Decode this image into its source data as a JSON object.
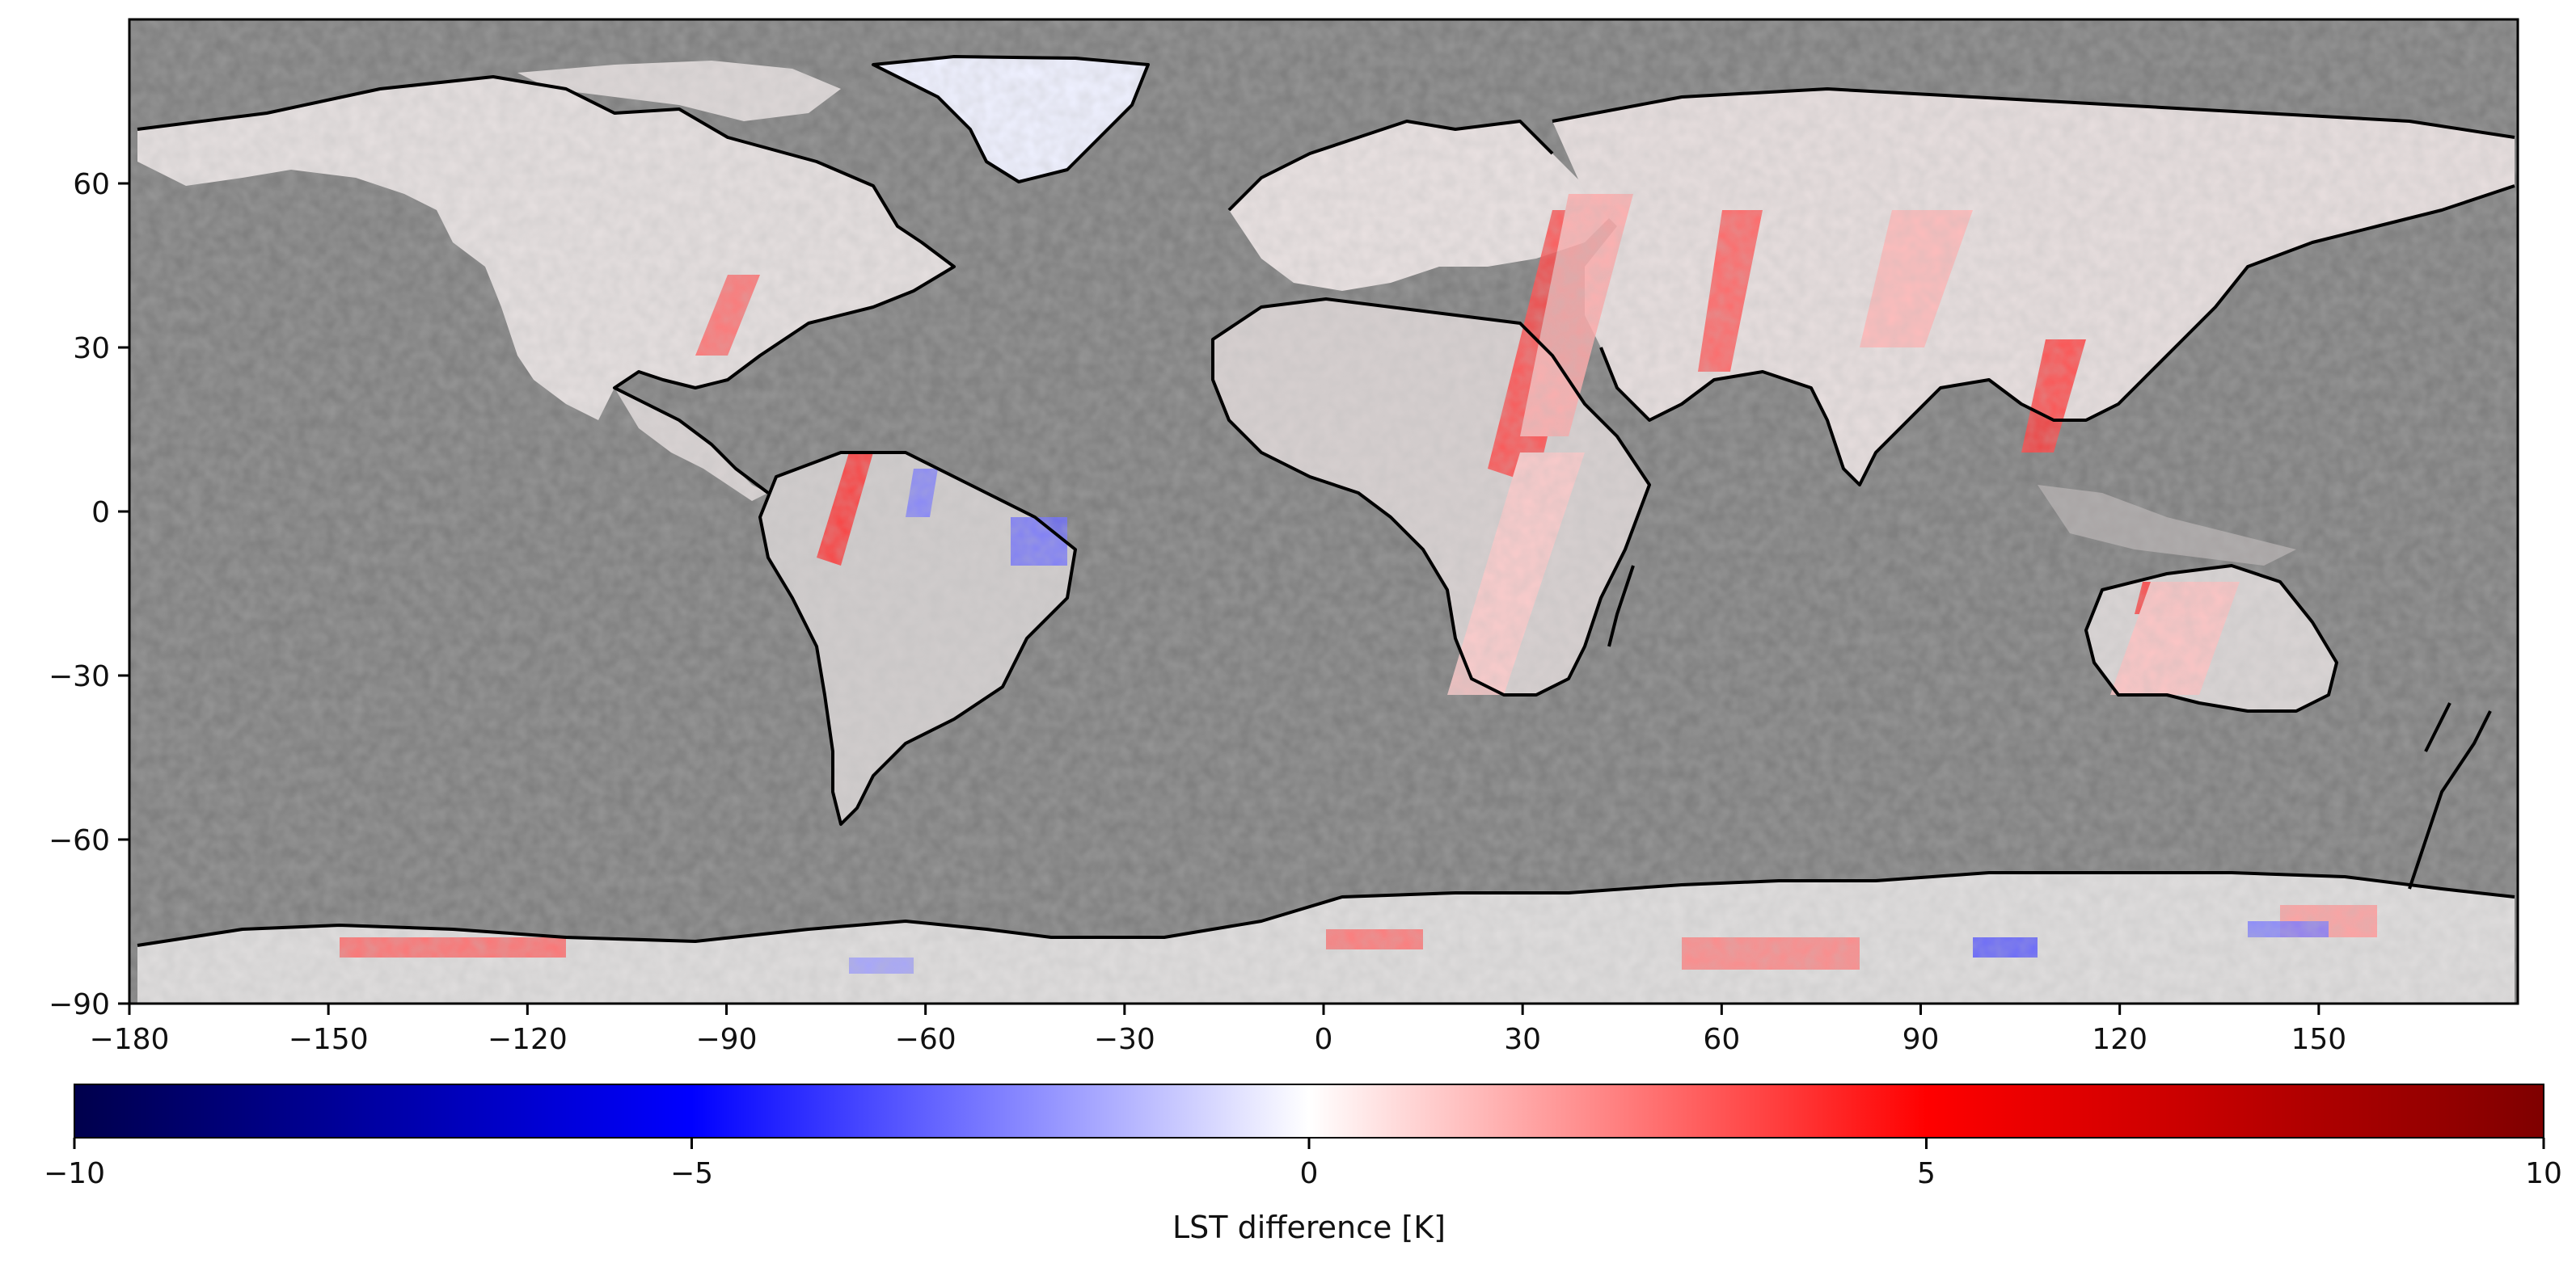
{
  "map": {
    "projection": "plate-carree",
    "background_color": "#808080",
    "coastline_color": "#000000",
    "extent": {
      "lon": [
        -180,
        180
      ],
      "lat": [
        -90,
        90
      ]
    },
    "x_ticks": [
      "−180",
      "−150",
      "−120",
      "−90",
      "−60",
      "−30",
      "0",
      "30",
      "60",
      "90",
      "120",
      "150"
    ],
    "x_tick_values": [
      -180,
      -150,
      -120,
      -90,
      -60,
      -30,
      0,
      30,
      60,
      90,
      120,
      150
    ],
    "y_ticks": [
      "60",
      "30",
      "0",
      "−30",
      "−60",
      "−90"
    ],
    "y_tick_values": [
      60,
      30,
      0,
      -30,
      -60,
      -90
    ]
  },
  "colorbar": {
    "label": "LST difference [K]",
    "min": -10,
    "max": 10,
    "ticks": [
      "−10",
      "−5",
      "0",
      "5",
      "10"
    ],
    "tick_values": [
      -10,
      -5,
      0,
      5,
      10
    ],
    "colormap": "seismic",
    "colors": [
      "#00004c",
      "#0000ff",
      "#ffffff",
      "#ff0000",
      "#7f0000"
    ]
  }
}
